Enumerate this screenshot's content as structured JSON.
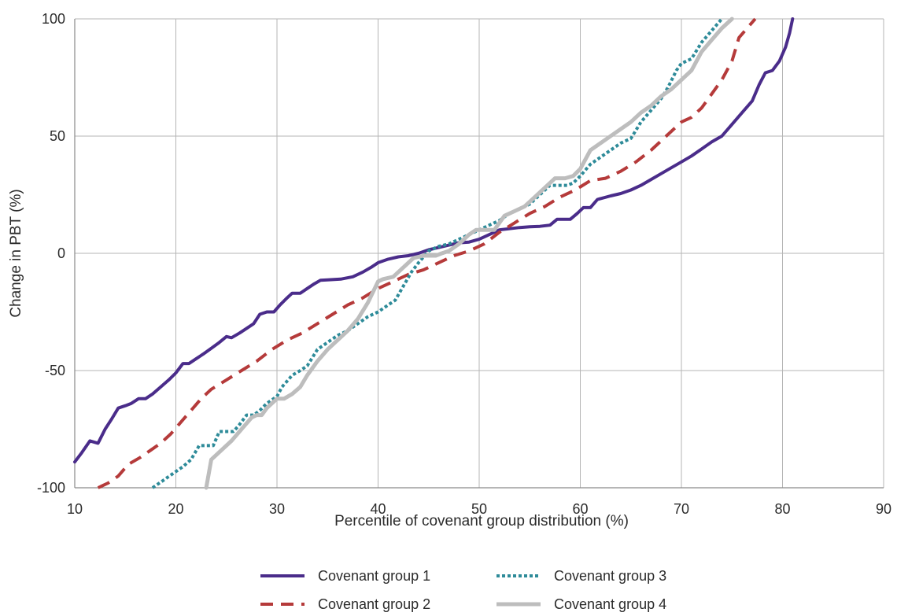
{
  "chart_data": {
    "type": "line",
    "title": "",
    "xlabel": "Percentile of covenant group distribution (%)",
    "ylabel": "Change in PBT (%)",
    "xlim": [
      10,
      90
    ],
    "ylim": [
      -100,
      100
    ],
    "x_ticks": [
      "10",
      "20",
      "30",
      "40",
      "50",
      "60",
      "70",
      "80",
      "90"
    ],
    "y_ticks": [
      "100",
      "50",
      "0",
      "-50",
      "-100"
    ],
    "grid": true,
    "legend_position": "bottom",
    "series": [
      {
        "name": "Covenant group 1",
        "color": "#4a2c8a",
        "dash": "solid",
        "points": [
          [
            10,
            -89
          ],
          [
            10.7,
            -85
          ],
          [
            11.5,
            -80
          ],
          [
            12.3,
            -81
          ],
          [
            13,
            -75
          ],
          [
            13.6,
            -71
          ],
          [
            14.3,
            -66
          ],
          [
            15,
            -65
          ],
          [
            15.6,
            -64
          ],
          [
            16.3,
            -62
          ],
          [
            17,
            -62
          ],
          [
            17.7,
            -60
          ],
          [
            18.5,
            -57
          ],
          [
            19.3,
            -54
          ],
          [
            20,
            -51
          ],
          [
            20.7,
            -47
          ],
          [
            21.3,
            -47
          ],
          [
            22,
            -45
          ],
          [
            22.7,
            -43
          ],
          [
            23.5,
            -40.5
          ],
          [
            24.3,
            -38
          ],
          [
            25,
            -35.5
          ],
          [
            25.5,
            -36
          ],
          [
            26.3,
            -34
          ],
          [
            27,
            -32
          ],
          [
            27.7,
            -30
          ],
          [
            28.3,
            -26
          ],
          [
            29,
            -25
          ],
          [
            29.7,
            -25
          ],
          [
            30.3,
            -22
          ],
          [
            31,
            -19
          ],
          [
            31.5,
            -17
          ],
          [
            32.3,
            -17
          ],
          [
            33,
            -15
          ],
          [
            33.7,
            -13
          ],
          [
            34.3,
            -11.5
          ],
          [
            35,
            -11.3
          ],
          [
            36.3,
            -11
          ],
          [
            37.5,
            -10
          ],
          [
            38.5,
            -8
          ],
          [
            39.3,
            -6
          ],
          [
            40,
            -4
          ],
          [
            41,
            -2.5
          ],
          [
            42,
            -1.5
          ],
          [
            43,
            -1
          ],
          [
            44,
            0
          ],
          [
            45,
            1.5
          ],
          [
            46,
            2.5
          ],
          [
            47,
            3.5
          ],
          [
            48,
            4.5
          ],
          [
            49,
            4.8
          ],
          [
            50,
            6
          ],
          [
            51,
            8
          ],
          [
            52,
            10
          ],
          [
            53,
            10.5
          ],
          [
            54,
            11
          ],
          [
            55,
            11.3
          ],
          [
            56,
            11.5
          ],
          [
            57,
            12
          ],
          [
            57.7,
            14.5
          ],
          [
            58.5,
            14.5
          ],
          [
            59,
            14.5
          ],
          [
            59.7,
            17
          ],
          [
            60.3,
            19.5
          ],
          [
            61,
            19.5
          ],
          [
            61.7,
            23
          ],
          [
            63,
            24.5
          ],
          [
            64,
            25.5
          ],
          [
            65,
            27
          ],
          [
            66,
            29
          ],
          [
            67,
            31.5
          ],
          [
            68,
            34
          ],
          [
            69,
            36.5
          ],
          [
            70,
            39
          ],
          [
            71,
            41.5
          ],
          [
            72,
            44.5
          ],
          [
            73,
            47.5
          ],
          [
            74,
            50
          ],
          [
            75,
            55
          ],
          [
            76,
            60
          ],
          [
            77,
            65
          ],
          [
            77.7,
            72
          ],
          [
            78.3,
            77
          ],
          [
            79,
            78
          ],
          [
            79.7,
            82
          ],
          [
            80.3,
            88
          ],
          [
            80.7,
            94
          ],
          [
            81,
            100
          ]
        ]
      },
      {
        "name": "Covenant group 2",
        "color": "#b53a3a",
        "dash": "dashed",
        "points": [
          [
            12.3,
            -100
          ],
          [
            13.3,
            -98
          ],
          [
            14.3,
            -95
          ],
          [
            15.3,
            -90
          ],
          [
            16.5,
            -87
          ],
          [
            17.5,
            -84
          ],
          [
            18.5,
            -81
          ],
          [
            19.5,
            -77
          ],
          [
            20.5,
            -72
          ],
          [
            21.5,
            -67
          ],
          [
            22.5,
            -62
          ],
          [
            23.5,
            -58
          ],
          [
            25,
            -54
          ],
          [
            26.5,
            -50
          ],
          [
            28,
            -46
          ],
          [
            29.5,
            -41
          ],
          [
            31,
            -37
          ],
          [
            32.5,
            -34
          ],
          [
            34,
            -30
          ],
          [
            35.5,
            -26
          ],
          [
            37,
            -22
          ],
          [
            38.5,
            -19
          ],
          [
            40,
            -15
          ],
          [
            41.5,
            -12
          ],
          [
            43,
            -9
          ],
          [
            44.5,
            -7
          ],
          [
            46,
            -4
          ],
          [
            47.5,
            -1
          ],
          [
            49,
            1
          ],
          [
            50.5,
            4
          ],
          [
            52,
            9
          ],
          [
            53.5,
            13
          ],
          [
            55,
            17
          ],
          [
            56.5,
            20
          ],
          [
            58,
            24
          ],
          [
            59.5,
            27
          ],
          [
            61,
            31
          ],
          [
            62.5,
            32
          ],
          [
            64,
            35
          ],
          [
            65.5,
            39
          ],
          [
            67,
            44
          ],
          [
            68.5,
            50
          ],
          [
            70,
            56
          ],
          [
            71,
            58
          ],
          [
            72,
            62
          ],
          [
            73,
            68
          ],
          [
            74,
            74
          ],
          [
            75,
            82
          ],
          [
            75.7,
            92
          ],
          [
            76.5,
            96
          ],
          [
            77.3,
            100
          ]
        ]
      },
      {
        "name": "Covenant group 3",
        "color": "#2e8b99",
        "dash": "dotted",
        "points": [
          [
            17.7,
            -100
          ],
          [
            18.7,
            -97
          ],
          [
            19.7,
            -94
          ],
          [
            20.7,
            -91
          ],
          [
            21.5,
            -88
          ],
          [
            22.3,
            -82
          ],
          [
            23,
            -82
          ],
          [
            23.7,
            -82
          ],
          [
            24.3,
            -76
          ],
          [
            25,
            -76
          ],
          [
            25.7,
            -76
          ],
          [
            26.3,
            -73
          ],
          [
            27,
            -69
          ],
          [
            27.7,
            -69
          ],
          [
            28.3,
            -67
          ],
          [
            29,
            -64
          ],
          [
            30,
            -61
          ],
          [
            30.5,
            -57
          ],
          [
            31.5,
            -52
          ],
          [
            32.3,
            -50
          ],
          [
            33,
            -48
          ],
          [
            34,
            -41
          ],
          [
            35,
            -38
          ],
          [
            36,
            -35
          ],
          [
            37,
            -33
          ],
          [
            38,
            -30
          ],
          [
            39,
            -27
          ],
          [
            40,
            -25
          ],
          [
            41,
            -22
          ],
          [
            41.7,
            -20
          ],
          [
            42.5,
            -14
          ],
          [
            43.3,
            -8
          ],
          [
            44,
            -4
          ],
          [
            45,
            1
          ],
          [
            46,
            3
          ],
          [
            47,
            4
          ],
          [
            48,
            6
          ],
          [
            49,
            8
          ],
          [
            50,
            10
          ],
          [
            51,
            12
          ],
          [
            52,
            14
          ],
          [
            53,
            17
          ],
          [
            54,
            19
          ],
          [
            55,
            21
          ],
          [
            56,
            25
          ],
          [
            57,
            29
          ],
          [
            58,
            29
          ],
          [
            58.7,
            29
          ],
          [
            59.3,
            30
          ],
          [
            60,
            33
          ],
          [
            61,
            38
          ],
          [
            62,
            41
          ],
          [
            63,
            44
          ],
          [
            64,
            47
          ],
          [
            65,
            49
          ],
          [
            66,
            56
          ],
          [
            67,
            61
          ],
          [
            68,
            66
          ],
          [
            68.7,
            71
          ],
          [
            69.5,
            78
          ],
          [
            70,
            81
          ],
          [
            71,
            83
          ],
          [
            72,
            90
          ],
          [
            73,
            95
          ],
          [
            74,
            100
          ]
        ]
      },
      {
        "name": "Covenant group 4",
        "color": "#bdbdbd",
        "dash": "solid",
        "points": [
          [
            23,
            -100
          ],
          [
            23.5,
            -88
          ],
          [
            24.5,
            -84
          ],
          [
            25.5,
            -80
          ],
          [
            26.5,
            -75
          ],
          [
            27.5,
            -70
          ],
          [
            28,
            -69
          ],
          [
            28.5,
            -69
          ],
          [
            29,
            -66
          ],
          [
            30,
            -62
          ],
          [
            30.7,
            -62
          ],
          [
            31.5,
            -60
          ],
          [
            32.3,
            -57
          ],
          [
            33,
            -52
          ],
          [
            34,
            -46
          ],
          [
            35,
            -41
          ],
          [
            36,
            -37
          ],
          [
            37,
            -33
          ],
          [
            38,
            -28
          ],
          [
            39,
            -21
          ],
          [
            40,
            -12
          ],
          [
            40.5,
            -11
          ],
          [
            41.5,
            -10
          ],
          [
            42.5,
            -6
          ],
          [
            43.5,
            -2
          ],
          [
            44.5,
            -1
          ],
          [
            45,
            -1
          ],
          [
            45.7,
            -1
          ],
          [
            46.3,
            0
          ],
          [
            47,
            1
          ],
          [
            48,
            4
          ],
          [
            49,
            8
          ],
          [
            49.7,
            10
          ],
          [
            50.5,
            10
          ],
          [
            51.5,
            10
          ],
          [
            52.5,
            16
          ],
          [
            53.5,
            18
          ],
          [
            54.5,
            20
          ],
          [
            55.5,
            24
          ],
          [
            56.5,
            28
          ],
          [
            57.5,
            32
          ],
          [
            58.5,
            32
          ],
          [
            59.3,
            33
          ],
          [
            60,
            36
          ],
          [
            61,
            44
          ],
          [
            62,
            47
          ],
          [
            63,
            50
          ],
          [
            64,
            53
          ],
          [
            65,
            56
          ],
          [
            66,
            60
          ],
          [
            67,
            63
          ],
          [
            68,
            67
          ],
          [
            69,
            70
          ],
          [
            70,
            74
          ],
          [
            71,
            78
          ],
          [
            72,
            86
          ],
          [
            73,
            91
          ],
          [
            74,
            96
          ],
          [
            75,
            100
          ]
        ]
      }
    ]
  }
}
